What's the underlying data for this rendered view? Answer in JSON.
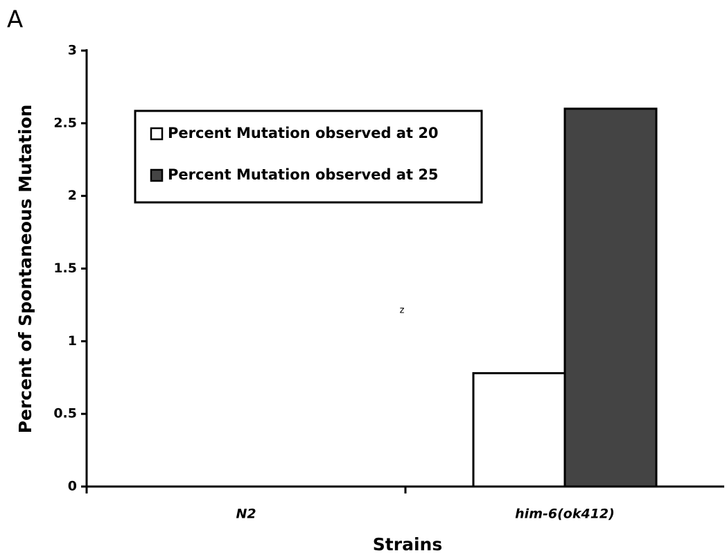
{
  "chart_data": {
    "type": "bar",
    "panel_label": "A",
    "annotation": "z",
    "y_label": "Percent of Spontaneous Mutation",
    "x_label": "Strains",
    "categories": [
      "N2",
      "him-6(ok412)"
    ],
    "series": [
      {
        "name": "Percent Mutation observed at 20",
        "color": "#ffffff",
        "values": [
          0,
          0.78
        ]
      },
      {
        "name": "Percent Mutation observed at 25",
        "color": "#444444",
        "values": [
          0,
          2.6
        ]
      }
    ],
    "ylim": [
      0,
      3
    ],
    "yticks": [
      0,
      0.5,
      1,
      1.5,
      2,
      2.5,
      3
    ]
  }
}
